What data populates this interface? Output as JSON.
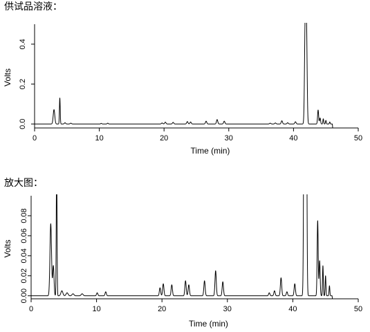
{
  "captions": {
    "top": "供试品溶液：",
    "bottom": "放大图："
  },
  "chart_data": [
    {
      "type": "line",
      "xlabel": "Time (min)",
      "ylabel": "Volts",
      "xlim": [
        0,
        50
      ],
      "ylim": [
        -0.02,
        0.5
      ],
      "xticks": [
        0,
        10,
        20,
        30,
        40,
        50
      ],
      "yticks": [
        0.0,
        0.2,
        0.4
      ],
      "ytick_labels": [
        "0.0",
        "0.2",
        "0.4"
      ],
      "baseline": 0.0,
      "peaks": [
        {
          "rt": 3.0,
          "height": 0.072,
          "width": 0.12
        },
        {
          "rt": 3.9,
          "height": 0.13,
          "width": 0.06
        },
        {
          "rt": 4.7,
          "height": 0.006,
          "width": 0.1
        },
        {
          "rt": 5.6,
          "height": 0.004,
          "width": 0.1
        },
        {
          "rt": 10.3,
          "height": 0.003,
          "width": 0.08
        },
        {
          "rt": 11.3,
          "height": 0.004,
          "width": 0.08
        },
        {
          "rt": 19.7,
          "height": 0.005,
          "width": 0.1
        },
        {
          "rt": 20.2,
          "height": 0.009,
          "width": 0.1
        },
        {
          "rt": 21.4,
          "height": 0.008,
          "width": 0.1
        },
        {
          "rt": 23.6,
          "height": 0.012,
          "width": 0.1
        },
        {
          "rt": 24.1,
          "height": 0.01,
          "width": 0.1
        },
        {
          "rt": 26.5,
          "height": 0.014,
          "width": 0.1
        },
        {
          "rt": 28.2,
          "height": 0.022,
          "width": 0.1
        },
        {
          "rt": 29.3,
          "height": 0.014,
          "width": 0.1
        },
        {
          "rt": 36.4,
          "height": 0.004,
          "width": 0.1
        },
        {
          "rt": 37.2,
          "height": 0.005,
          "width": 0.1
        },
        {
          "rt": 38.2,
          "height": 0.016,
          "width": 0.1
        },
        {
          "rt": 39.1,
          "height": 0.006,
          "width": 0.1
        },
        {
          "rt": 40.3,
          "height": 0.011,
          "width": 0.1
        },
        {
          "rt": 41.8,
          "height": 0.49,
          "width": 0.1
        },
        {
          "rt": 42.0,
          "height": 0.48,
          "width": 0.1
        },
        {
          "rt": 43.8,
          "height": 0.07,
          "width": 0.08
        },
        {
          "rt": 44.1,
          "height": 0.03,
          "width": 0.08
        },
        {
          "rt": 44.6,
          "height": 0.026,
          "width": 0.06
        },
        {
          "rt": 45.0,
          "height": 0.018,
          "width": 0.06
        },
        {
          "rt": 45.6,
          "height": 0.01,
          "width": 0.06
        }
      ]
    },
    {
      "type": "line",
      "xlabel": "Time (min)",
      "ylabel": "Volts",
      "xlim": [
        0,
        50
      ],
      "ylim": [
        -0.003,
        0.1
      ],
      "xticks": [
        0,
        10,
        20,
        30,
        40,
        50
      ],
      "yticks": [
        0.0,
        0.02,
        0.04,
        0.06,
        0.08
      ],
      "ytick_labels": [
        "0.00",
        "0.02",
        "0.04",
        "0.06",
        "0.08"
      ],
      "baseline": 0.0,
      "peaks": [
        {
          "rt": 3.0,
          "height": 0.072,
          "width": 0.12
        },
        {
          "rt": 3.4,
          "height": 0.03,
          "width": 0.1
        },
        {
          "rt": 3.9,
          "height": 0.13,
          "width": 0.06
        },
        {
          "rt": 4.7,
          "height": 0.005,
          "width": 0.15
        },
        {
          "rt": 5.5,
          "height": 0.003,
          "width": 0.15
        },
        {
          "rt": 6.4,
          "height": 0.002,
          "width": 0.15
        },
        {
          "rt": 7.8,
          "height": 0.002,
          "width": 0.15
        },
        {
          "rt": 10.1,
          "height": 0.003,
          "width": 0.1
        },
        {
          "rt": 11.4,
          "height": 0.004,
          "width": 0.1
        },
        {
          "rt": 19.7,
          "height": 0.008,
          "width": 0.1
        },
        {
          "rt": 20.2,
          "height": 0.012,
          "width": 0.1
        },
        {
          "rt": 21.5,
          "height": 0.011,
          "width": 0.1
        },
        {
          "rt": 23.6,
          "height": 0.015,
          "width": 0.1
        },
        {
          "rt": 24.1,
          "height": 0.011,
          "width": 0.1
        },
        {
          "rt": 26.5,
          "height": 0.015,
          "width": 0.1
        },
        {
          "rt": 28.2,
          "height": 0.025,
          "width": 0.1
        },
        {
          "rt": 29.3,
          "height": 0.014,
          "width": 0.1
        },
        {
          "rt": 36.4,
          "height": 0.003,
          "width": 0.1
        },
        {
          "rt": 37.2,
          "height": 0.005,
          "width": 0.1
        },
        {
          "rt": 38.2,
          "height": 0.018,
          "width": 0.1
        },
        {
          "rt": 39.1,
          "height": 0.004,
          "width": 0.1
        },
        {
          "rt": 40.3,
          "height": 0.012,
          "width": 0.1
        },
        {
          "rt": 41.8,
          "height": 0.49,
          "width": 0.1
        },
        {
          "rt": 42.0,
          "height": 0.48,
          "width": 0.1
        },
        {
          "rt": 43.8,
          "height": 0.075,
          "width": 0.08
        },
        {
          "rt": 44.1,
          "height": 0.035,
          "width": 0.08
        },
        {
          "rt": 44.6,
          "height": 0.03,
          "width": 0.06
        },
        {
          "rt": 45.0,
          "height": 0.02,
          "width": 0.06
        },
        {
          "rt": 45.6,
          "height": 0.01,
          "width": 0.06
        }
      ]
    }
  ]
}
